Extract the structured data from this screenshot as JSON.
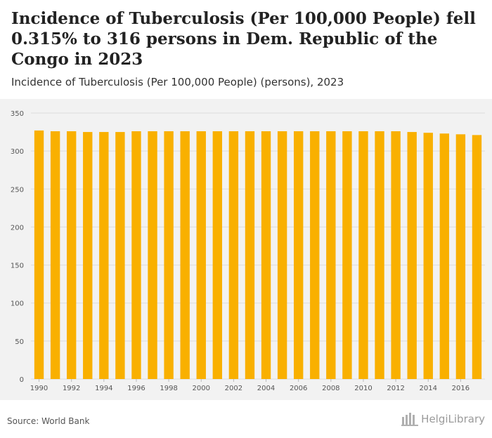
{
  "header": {
    "title": "Incidence of Tuberculosis (Per 100,000 People) fell 0.315% to 316 persons in Dem. Republic of the Congo in 2023",
    "subtitle": "Incidence of Tuberculosis (Per 100,000 People) (persons), 2023"
  },
  "footer": {
    "source": "Source: World Bank",
    "brand": "HelgiLibrary"
  },
  "colors": {
    "bar": "#f9b000",
    "grid": "#dcdcdc",
    "axis_text": "#555555"
  },
  "chart_data": {
    "type": "bar",
    "categories": [
      "1990",
      "1991",
      "1992",
      "1993",
      "1994",
      "1995",
      "1996",
      "1997",
      "1998",
      "1999",
      "2000",
      "2001",
      "2002",
      "2003",
      "2004",
      "2005",
      "2006",
      "2007",
      "2008",
      "2009",
      "2010",
      "2011",
      "2012",
      "2013",
      "2014",
      "2015",
      "2016",
      "2017"
    ],
    "x_tick_labels": [
      "1990",
      "1992",
      "1994",
      "1996",
      "1998",
      "2000",
      "2002",
      "2004",
      "2006",
      "2008",
      "2010",
      "2012",
      "2014",
      "2016"
    ],
    "values": [
      327,
      326,
      326,
      325,
      325,
      325,
      326,
      326,
      326,
      326,
      326,
      326,
      326,
      326,
      326,
      326,
      326,
      326,
      326,
      326,
      326,
      326,
      326,
      325,
      324,
      323,
      322,
      321
    ],
    "y_ticks": [
      0,
      50,
      100,
      150,
      200,
      250,
      300,
      350
    ],
    "ylim": [
      0,
      350
    ],
    "xlabel": "",
    "ylabel": "",
    "grid": true,
    "legend": "none"
  }
}
